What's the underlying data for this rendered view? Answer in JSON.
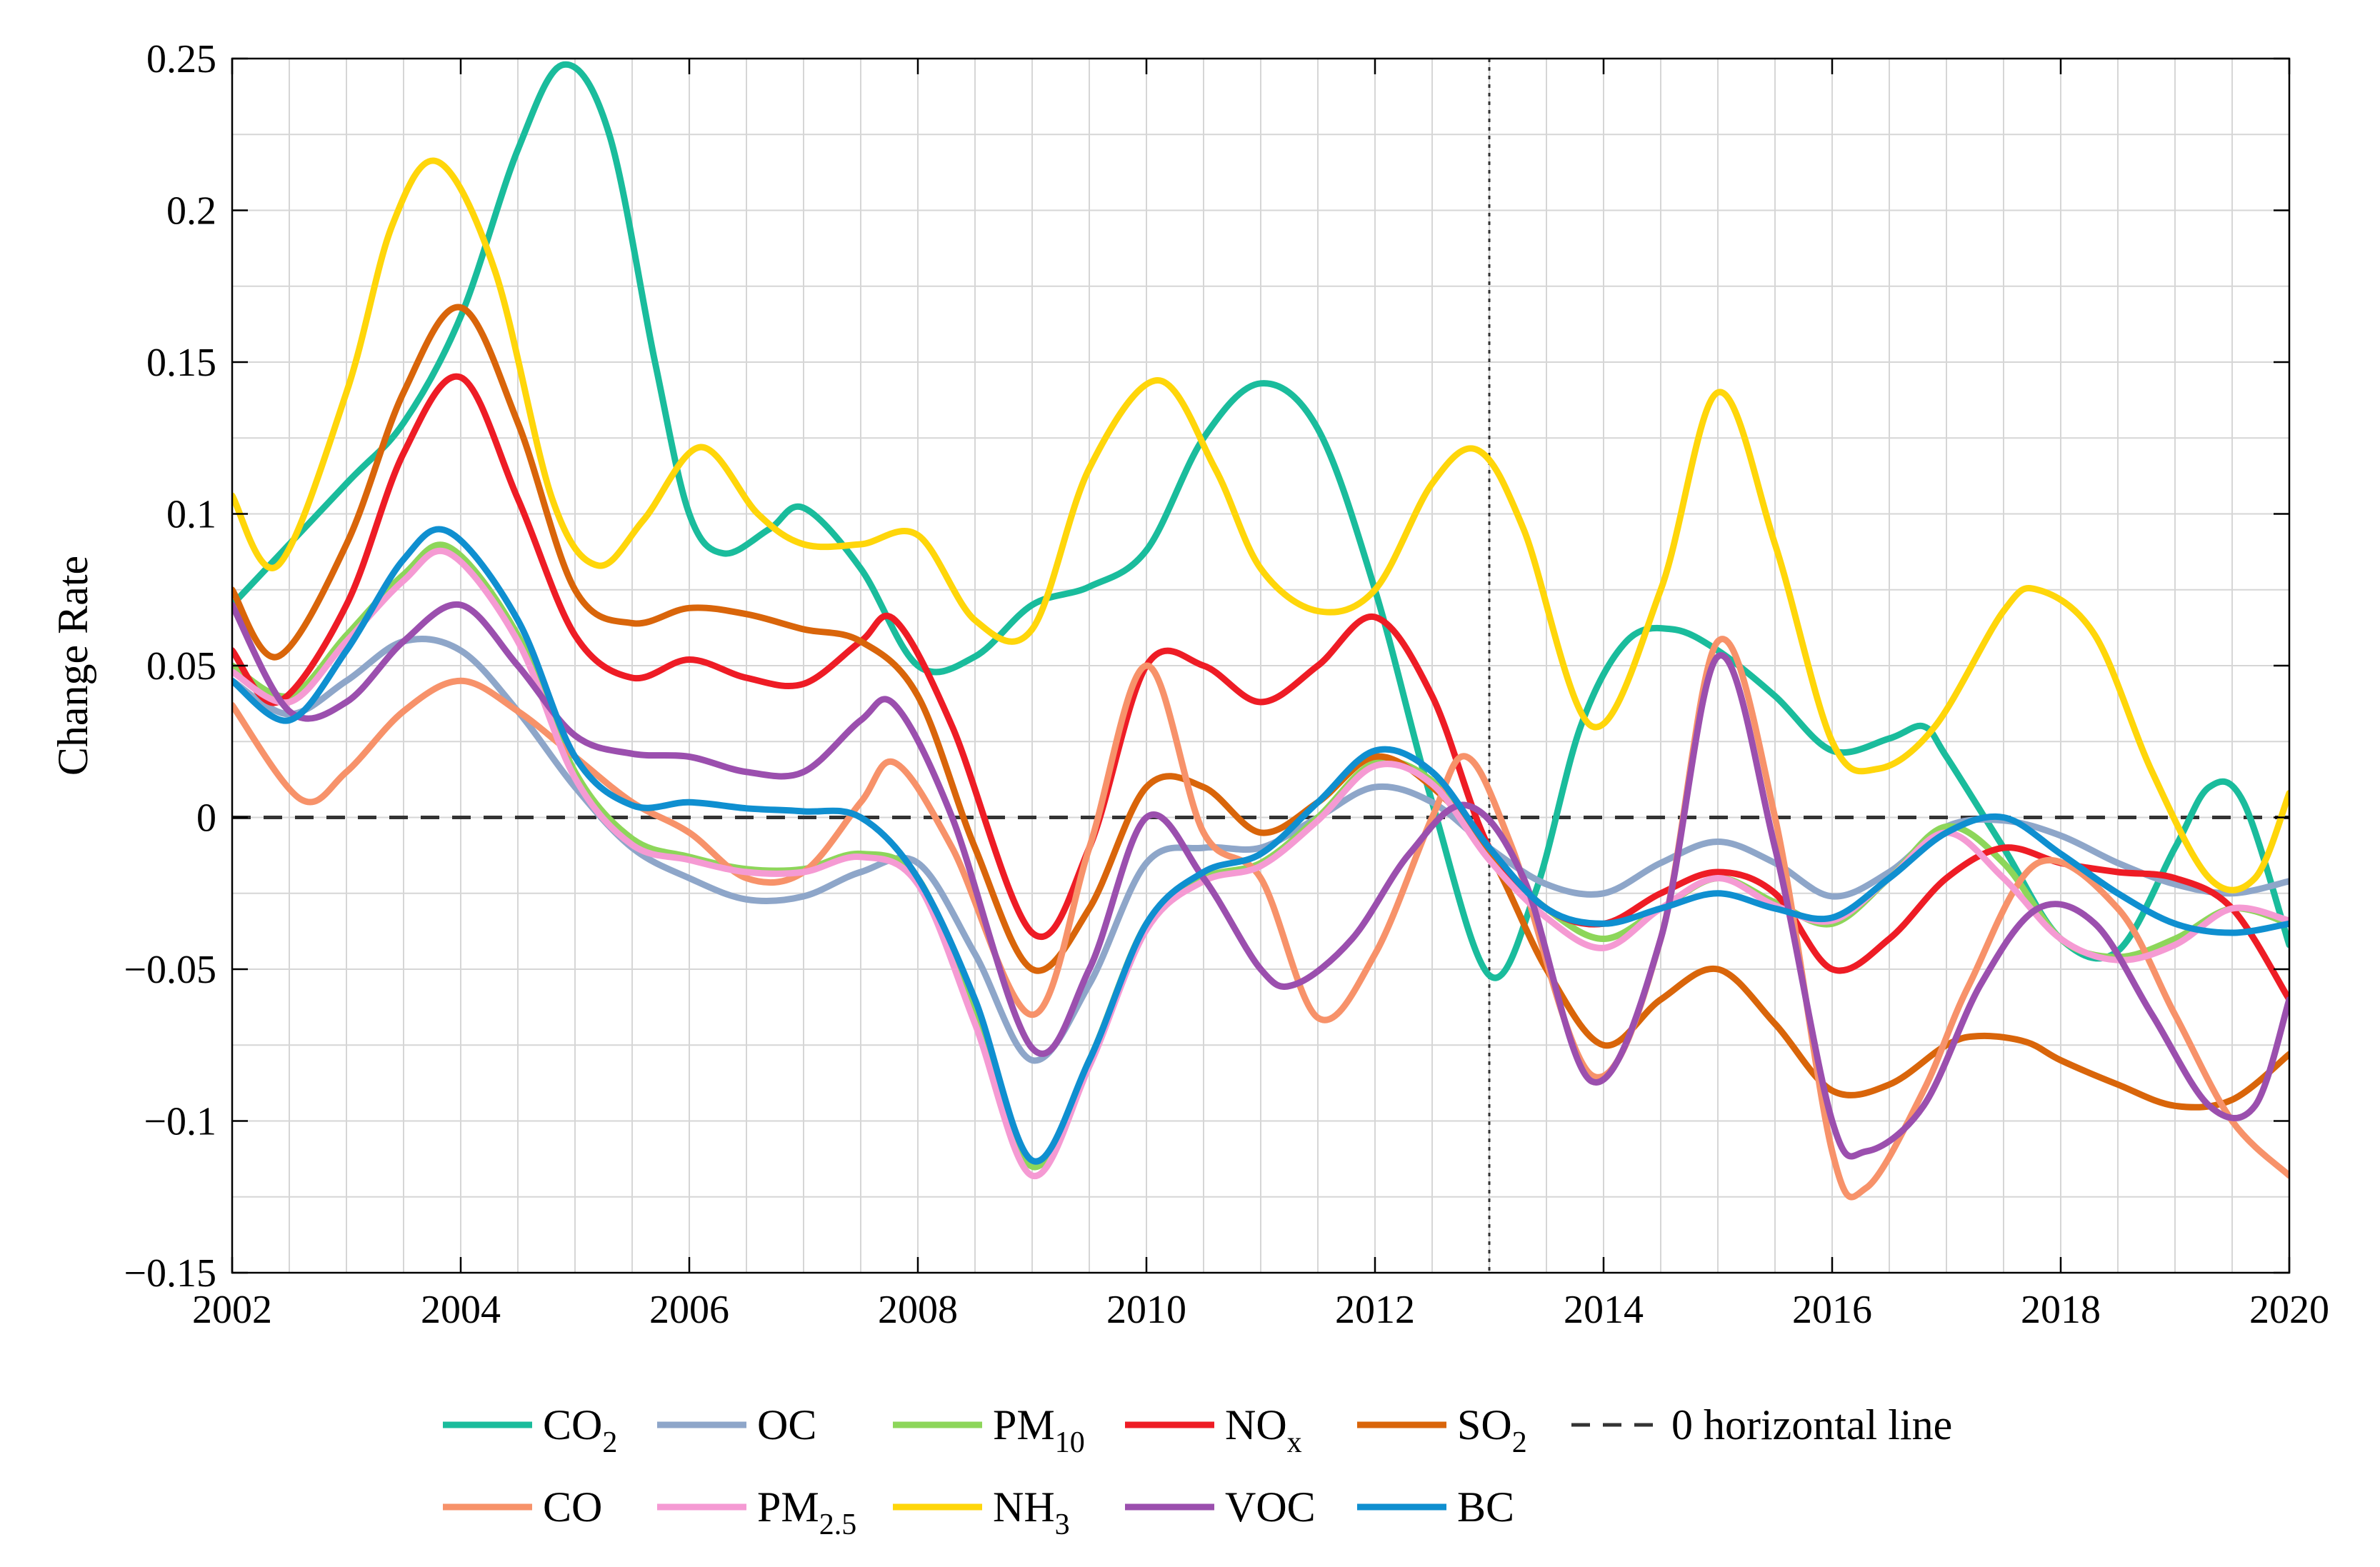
{
  "chart_data": {
    "type": "line",
    "title": "",
    "xlabel": "",
    "ylabel": "Change Rate",
    "xlim": [
      2002,
      2020
    ],
    "ylim": [
      -0.15,
      0.25
    ],
    "xticks": [
      2002,
      2004,
      2006,
      2008,
      2010,
      2012,
      2014,
      2016,
      2018,
      2020
    ],
    "xtick_labels": [
      "2002",
      "2004",
      "2006",
      "2008",
      "2010",
      "2012",
      "2014",
      "2016",
      "2018",
      "2020"
    ],
    "yticks": [
      -0.15,
      -0.1,
      -0.05,
      0,
      0.05,
      0.1,
      0.15,
      0.2,
      0.25
    ],
    "ytick_labels": [
      "−0.15",
      "−0.1",
      "−0.05",
      "0",
      "0.05",
      "0.1",
      "0.15",
      "0.2",
      "0.25"
    ],
    "grid": true,
    "reference_lines": {
      "horizontal_zero": 0,
      "vertical_dotted_x": 2013
    },
    "legend_position": "bottom",
    "series": [
      {
        "name": "CO",
        "sub": "2",
        "color": "#1abc9c",
        "x": [
          2002,
          2003,
          2003.5,
          2004,
          2004.5,
          2004.9,
          2005.3,
          2005.7,
          2006,
          2006.3,
          2006.7,
          2007,
          2007.5,
          2008,
          2008.5,
          2009,
          2009.5,
          2010,
          2010.5,
          2011,
          2011.5,
          2012,
          2012.5,
          2013,
          2013.4,
          2013.8,
          2014.2,
          2014.6,
          2015,
          2015.5,
          2016,
          2016.5,
          2016.8,
          2017,
          2017.5,
          2018,
          2018.5,
          2019,
          2019.3,
          2019.6,
          2020
        ],
        "y": [
          0.07,
          0.11,
          0.13,
          0.165,
          0.22,
          0.248,
          0.225,
          0.15,
          0.1,
          0.087,
          0.095,
          0.102,
          0.082,
          0.05,
          0.053,
          0.07,
          0.076,
          0.088,
          0.125,
          0.143,
          0.128,
          0.075,
          0.005,
          -0.052,
          -0.025,
          0.03,
          0.058,
          0.062,
          0.055,
          0.04,
          0.022,
          0.026,
          0.03,
          0.02,
          -0.01,
          -0.04,
          -0.044,
          -0.01,
          0.01,
          0.005,
          -0.042
        ]
      },
      {
        "name": "OC",
        "sub": "",
        "color": "#8ea6c9",
        "x": [
          2002,
          2002.5,
          2003,
          2003.5,
          2004,
          2004.5,
          2005,
          2005.5,
          2006,
          2006.5,
          2007,
          2007.5,
          2008,
          2008.5,
          2009,
          2009.5,
          2010,
          2010.5,
          2011,
          2011.5,
          2012,
          2012.5,
          2013,
          2013.5,
          2014,
          2014.5,
          2015,
          2015.5,
          2016,
          2016.5,
          2017,
          2017.5,
          2018,
          2018.5,
          2019,
          2019.5,
          2020
        ],
        "y": [
          0.045,
          0.034,
          0.045,
          0.058,
          0.055,
          0.035,
          0.01,
          -0.01,
          -0.02,
          -0.027,
          -0.026,
          -0.018,
          -0.015,
          -0.045,
          -0.08,
          -0.055,
          -0.015,
          -0.01,
          -0.01,
          0.0,
          0.01,
          0.005,
          -0.01,
          -0.022,
          -0.025,
          -0.015,
          -0.008,
          -0.015,
          -0.026,
          -0.018,
          -0.003,
          -0.001,
          -0.006,
          -0.015,
          -0.022,
          -0.025,
          -0.021
        ]
      },
      {
        "name": "PM",
        "sub": "10",
        "color": "#8dd65a",
        "x": [
          2002,
          2002.5,
          2003,
          2003.5,
          2003.9,
          2004.5,
          2005,
          2005.5,
          2006,
          2006.5,
          2007,
          2007.5,
          2008,
          2008.5,
          2009,
          2009.5,
          2010,
          2010.5,
          2011,
          2011.5,
          2012,
          2012.5,
          2013,
          2013.5,
          2014,
          2014.5,
          2015,
          2015.5,
          2016,
          2016.5,
          2017,
          2017.5,
          2018,
          2018.5,
          2019,
          2019.5,
          2020
        ],
        "y": [
          0.05,
          0.04,
          0.06,
          0.08,
          0.089,
          0.06,
          0.015,
          -0.007,
          -0.013,
          -0.017,
          -0.017,
          -0.012,
          -0.02,
          -0.065,
          -0.115,
          -0.08,
          -0.035,
          -0.02,
          -0.015,
          0.0,
          0.018,
          0.012,
          -0.012,
          -0.03,
          -0.04,
          -0.03,
          -0.02,
          -0.028,
          -0.035,
          -0.02,
          -0.003,
          -0.015,
          -0.04,
          -0.046,
          -0.04,
          -0.03,
          -0.035
        ]
      },
      {
        "name": "NO",
        "sub": "x",
        "color": "#ee1c25",
        "x": [
          2002,
          2002.4,
          2003,
          2003.5,
          2004,
          2004.5,
          2005,
          2005.5,
          2006,
          2006.5,
          2007,
          2007.5,
          2007.8,
          2008.3,
          2009,
          2009.5,
          2010,
          2010.5,
          2011,
          2011.5,
          2012,
          2012.5,
          2013,
          2013.5,
          2014,
          2014.5,
          2015,
          2015.5,
          2016,
          2016.5,
          2017,
          2017.5,
          2018,
          2018.5,
          2019,
          2019.5,
          2020
        ],
        "y": [
          0.055,
          0.038,
          0.07,
          0.12,
          0.145,
          0.105,
          0.06,
          0.046,
          0.052,
          0.046,
          0.044,
          0.058,
          0.065,
          0.03,
          -0.038,
          -0.01,
          0.05,
          0.05,
          0.038,
          0.05,
          0.066,
          0.04,
          -0.01,
          -0.03,
          -0.035,
          -0.025,
          -0.018,
          -0.025,
          -0.05,
          -0.04,
          -0.02,
          -0.01,
          -0.015,
          -0.018,
          -0.02,
          -0.03,
          -0.06
        ]
      },
      {
        "name": "SO",
        "sub": "2",
        "color": "#d9650a",
        "x": [
          2002,
          2002.4,
          2003,
          2003.5,
          2004,
          2004.5,
          2005,
          2005.5,
          2006,
          2006.5,
          2007,
          2007.5,
          2008,
          2008.5,
          2009,
          2009.5,
          2010,
          2010.5,
          2011,
          2011.5,
          2012,
          2012.5,
          2013,
          2013.5,
          2014,
          2014.5,
          2015,
          2015.5,
          2016,
          2016.5,
          2017,
          2017.3,
          2017.7,
          2018,
          2018.5,
          2019,
          2019.5,
          2020
        ],
        "y": [
          0.075,
          0.053,
          0.09,
          0.14,
          0.168,
          0.13,
          0.075,
          0.064,
          0.069,
          0.067,
          0.062,
          0.058,
          0.04,
          -0.01,
          -0.05,
          -0.03,
          0.01,
          0.01,
          -0.005,
          0.005,
          0.02,
          0.01,
          -0.012,
          -0.05,
          -0.075,
          -0.06,
          -0.05,
          -0.068,
          -0.09,
          -0.088,
          -0.075,
          -0.072,
          -0.074,
          -0.08,
          -0.088,
          -0.095,
          -0.093,
          -0.078
        ]
      },
      {
        "name": "CO",
        "sub": "",
        "color": "#f7926a",
        "x": [
          2002,
          2002.6,
          2003,
          2003.5,
          2004,
          2004.5,
          2005,
          2005.5,
          2006,
          2006.5,
          2007,
          2007.5,
          2007.8,
          2008.3,
          2009,
          2009.5,
          2010,
          2010.5,
          2011,
          2011.5,
          2012,
          2012.5,
          2012.8,
          2013.2,
          2013.9,
          2014.5,
          2015,
          2015.5,
          2016,
          2016.3,
          2016.8,
          2017.2,
          2017.8,
          2018.5,
          2019,
          2019.5,
          2020
        ],
        "y": [
          0.037,
          0.006,
          0.015,
          0.035,
          0.045,
          0.035,
          0.02,
          0.005,
          -0.005,
          -0.02,
          -0.018,
          0.005,
          0.018,
          -0.01,
          -0.065,
          -0.01,
          0.05,
          -0.005,
          -0.02,
          -0.066,
          -0.045,
          0.0,
          0.02,
          -0.01,
          -0.085,
          -0.04,
          0.058,
          0.0,
          -0.11,
          -0.122,
          -0.09,
          -0.055,
          -0.015,
          -0.03,
          -0.065,
          -0.1,
          -0.118
        ]
      },
      {
        "name": "PM",
        "sub": "2.5",
        "color": "#f59ad3",
        "x": [
          2002,
          2002.5,
          2003,
          2003.5,
          2003.9,
          2004.5,
          2005,
          2005.5,
          2006,
          2006.5,
          2007,
          2007.5,
          2008,
          2008.5,
          2009,
          2009.5,
          2010,
          2010.5,
          2011,
          2011.5,
          2012,
          2012.5,
          2013,
          2013.5,
          2014,
          2014.5,
          2015,
          2015.5,
          2016,
          2016.5,
          2017,
          2017.5,
          2018,
          2018.5,
          2019,
          2019.5,
          2020
        ],
        "y": [
          0.048,
          0.038,
          0.058,
          0.078,
          0.087,
          0.058,
          0.013,
          -0.009,
          -0.014,
          -0.018,
          -0.018,
          -0.013,
          -0.022,
          -0.068,
          -0.118,
          -0.082,
          -0.037,
          -0.021,
          -0.016,
          -0.001,
          0.017,
          0.011,
          -0.014,
          -0.033,
          -0.043,
          -0.03,
          -0.02,
          -0.029,
          -0.034,
          -0.02,
          -0.005,
          -0.02,
          -0.04,
          -0.047,
          -0.042,
          -0.03,
          -0.034
        ]
      },
      {
        "name": "NH",
        "sub": "3",
        "color": "#ffd60a",
        "x": [
          2002,
          2002.4,
          2003,
          2003.4,
          2003.8,
          2004.3,
          2004.8,
          2005.2,
          2005.6,
          2006.1,
          2006.6,
          2007,
          2007.5,
          2008,
          2008.5,
          2009,
          2009.5,
          2010.1,
          2010.6,
          2011,
          2011.5,
          2012,
          2012.5,
          2012.9,
          2013.3,
          2013.9,
          2014.5,
          2015,
          2015.5,
          2016,
          2016.4,
          2016.9,
          2017.5,
          2017.8,
          2018.3,
          2018.8,
          2019.3,
          2019.7,
          2020
        ],
        "y": [
          0.106,
          0.083,
          0.14,
          0.195,
          0.216,
          0.18,
          0.105,
          0.083,
          0.098,
          0.122,
          0.1,
          0.09,
          0.09,
          0.093,
          0.065,
          0.062,
          0.115,
          0.144,
          0.115,
          0.082,
          0.068,
          0.075,
          0.11,
          0.121,
          0.095,
          0.03,
          0.075,
          0.14,
          0.09,
          0.025,
          0.016,
          0.03,
          0.068,
          0.075,
          0.06,
          0.015,
          -0.02,
          -0.02,
          0.008
        ]
      },
      {
        "name": "VOC",
        "sub": "",
        "color": "#9b4fae",
        "x": [
          2002,
          2002.5,
          2003,
          2003.5,
          2004,
          2004.5,
          2005,
          2005.5,
          2006,
          2006.5,
          2007,
          2007.5,
          2007.8,
          2008.3,
          2009,
          2009.5,
          2010,
          2010.5,
          2011,
          2011.3,
          2011.8,
          2012.3,
          2012.8,
          2013.3,
          2013.9,
          2014.5,
          2015,
          2015.5,
          2016,
          2016.3,
          2016.8,
          2017.3,
          2017.8,
          2018.3,
          2018.8,
          2019.3,
          2019.7,
          2020
        ],
        "y": [
          0.07,
          0.035,
          0.038,
          0.058,
          0.07,
          0.05,
          0.027,
          0.021,
          0.02,
          0.015,
          0.015,
          0.032,
          0.037,
          0.0,
          -0.076,
          -0.05,
          0.0,
          -0.02,
          -0.05,
          -0.055,
          -0.04,
          -0.012,
          0.004,
          -0.02,
          -0.087,
          -0.04,
          0.053,
          -0.01,
          -0.1,
          -0.11,
          -0.095,
          -0.055,
          -0.03,
          -0.035,
          -0.065,
          -0.095,
          -0.095,
          -0.06
        ]
      },
      {
        "name": "BC",
        "sub": "",
        "color": "#0f8fd0",
        "x": [
          2002,
          2002.5,
          2003,
          2003.5,
          2003.9,
          2004.5,
          2005,
          2005.5,
          2006,
          2006.5,
          2007,
          2007.5,
          2008,
          2008.5,
          2009,
          2009.5,
          2010,
          2010.5,
          2011,
          2011.5,
          2012,
          2012.5,
          2013,
          2013.5,
          2014,
          2014.5,
          2015,
          2015.5,
          2016,
          2016.5,
          2017,
          2017.5,
          2018,
          2018.5,
          2019,
          2019.5,
          2020
        ],
        "y": [
          0.045,
          0.032,
          0.055,
          0.085,
          0.094,
          0.065,
          0.02,
          0.004,
          0.005,
          0.003,
          0.002,
          0.0,
          -0.02,
          -0.06,
          -0.113,
          -0.08,
          -0.035,
          -0.018,
          -0.012,
          0.005,
          0.022,
          0.015,
          -0.01,
          -0.03,
          -0.035,
          -0.03,
          -0.025,
          -0.03,
          -0.033,
          -0.02,
          -0.005,
          0.0,
          -0.012,
          -0.025,
          -0.035,
          -0.038,
          -0.035
        ]
      }
    ]
  },
  "legend": {
    "rows": [
      [
        {
          "kind": "line",
          "series": 0,
          "label": "CO",
          "sub": "2"
        },
        {
          "kind": "line",
          "series": 1,
          "label": "OC",
          "sub": ""
        },
        {
          "kind": "line",
          "series": 2,
          "label": "PM",
          "sub": "10"
        },
        {
          "kind": "line",
          "series": 3,
          "label": "NO",
          "sub": "x"
        },
        {
          "kind": "line",
          "series": 4,
          "label": "SO",
          "sub": "2"
        },
        {
          "kind": "dash",
          "label": "0 horizontal line",
          "sub": ""
        }
      ],
      [
        {
          "kind": "line",
          "series": 5,
          "label": "CO",
          "sub": ""
        },
        {
          "kind": "line",
          "series": 6,
          "label": "PM",
          "sub": "2.5"
        },
        {
          "kind": "line",
          "series": 7,
          "label": "NH",
          "sub": "3"
        },
        {
          "kind": "line",
          "series": 8,
          "label": "VOC",
          "sub": ""
        },
        {
          "kind": "line",
          "series": 9,
          "label": "BC",
          "sub": ""
        }
      ]
    ]
  }
}
